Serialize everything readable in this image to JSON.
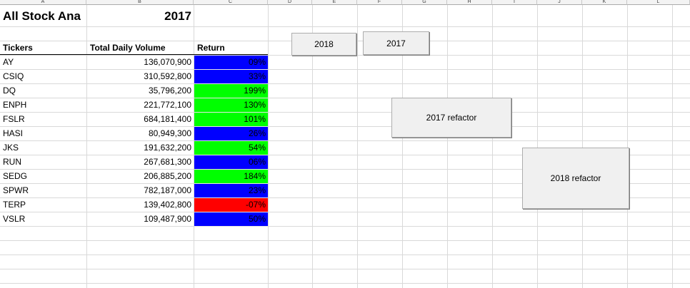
{
  "columns": [
    "A",
    "B",
    "C",
    "D",
    "E",
    "F",
    "G",
    "H",
    "I",
    "J",
    "K",
    "L"
  ],
  "title": {
    "label": "All Stock Ana",
    "year": "2017"
  },
  "table": {
    "headers": {
      "ticker": "Tickers",
      "volume": "Total Daily Volume",
      "return": "Return"
    },
    "rows": [
      {
        "ticker": "AY",
        "volume": "136,070,900",
        "return": "09%",
        "status": "blue"
      },
      {
        "ticker": "CSIQ",
        "volume": "310,592,800",
        "return": "33%",
        "status": "blue"
      },
      {
        "ticker": "DQ",
        "volume": "35,796,200",
        "return": "199%",
        "status": "green"
      },
      {
        "ticker": "ENPH",
        "volume": "221,772,100",
        "return": "130%",
        "status": "green"
      },
      {
        "ticker": "FSLR",
        "volume": "684,181,400",
        "return": "101%",
        "status": "green"
      },
      {
        "ticker": "HASI",
        "volume": "80,949,300",
        "return": "26%",
        "status": "blue"
      },
      {
        "ticker": "JKS",
        "volume": "191,632,200",
        "return": "54%",
        "status": "green"
      },
      {
        "ticker": "RUN",
        "volume": "267,681,300",
        "return": "06%",
        "status": "blue"
      },
      {
        "ticker": "SEDG",
        "volume": "206,885,200",
        "return": "184%",
        "status": "green"
      },
      {
        "ticker": "SPWR",
        "volume": "782,187,000",
        "return": "23%",
        "status": "blue"
      },
      {
        "ticker": "TERP",
        "volume": "139,402,800",
        "return": "-07%",
        "status": "red"
      },
      {
        "ticker": "VSLR",
        "volume": "109,487,900",
        "return": "50%",
        "status": "blue"
      }
    ]
  },
  "colors": {
    "blue": "#0000ff",
    "green": "#00ff00",
    "red": "#ff0000"
  },
  "buttons": {
    "b2018": "2018",
    "b2017": "2017",
    "refactor2017": "2017 refactor",
    "refactor2018": "2018 refactor"
  }
}
